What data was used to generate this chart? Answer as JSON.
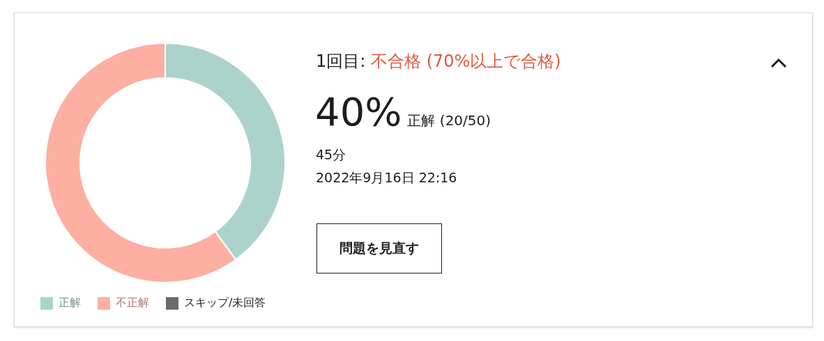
{
  "chart_data": {
    "type": "donut",
    "title": "1回目:",
    "subtitle": "不合格 (70%以上で合格)",
    "categories": [
      "正解",
      "不正解",
      "スキップ/未回答"
    ],
    "values": [
      40,
      60,
      0
    ],
    "colors": [
      "#acd3cb",
      "#fdafa2",
      "#6a6b6f"
    ],
    "legend": "bottom",
    "annotations": [
      "40%",
      "正解 (20/50)",
      "45分",
      "2022年9月16日 22:16",
      "問題を見直す"
    ]
  }
}
